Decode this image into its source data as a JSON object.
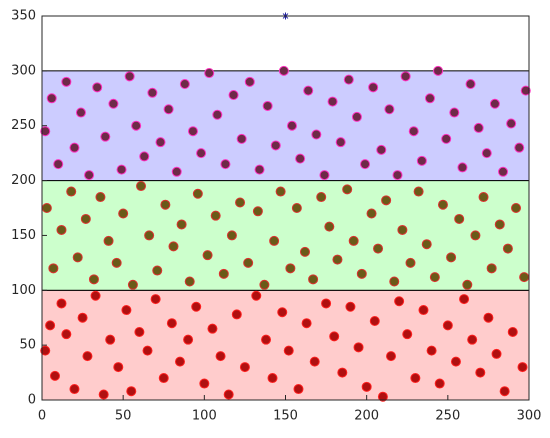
{
  "chart_data": {
    "type": "scatter",
    "xlim": [
      0,
      300
    ],
    "ylim": [
      0,
      350
    ],
    "xticks": [
      0,
      50,
      100,
      150,
      200,
      250,
      300
    ],
    "yticks": [
      0,
      50,
      100,
      150,
      200,
      250,
      300,
      350
    ],
    "grid": false,
    "bands": [
      {
        "range": [
          0,
          100
        ],
        "color": "#ffcccc"
      },
      {
        "range": [
          100,
          200
        ],
        "color": "#ccffcc"
      },
      {
        "range": [
          200,
          300
        ],
        "color": "#ccccff"
      }
    ],
    "series": [
      {
        "color": "#b01010",
        "edgecolor": "#ff2020",
        "marker": "circle",
        "x": [
          2,
          5,
          8,
          12,
          15,
          20,
          25,
          28,
          33,
          38,
          42,
          47,
          52,
          55,
          60,
          65,
          70,
          75,
          80,
          85,
          90,
          95,
          100,
          105,
          110,
          115,
          120,
          125,
          132,
          138,
          142,
          148,
          152,
          158,
          163,
          168,
          175,
          180,
          185,
          190,
          195,
          200,
          205,
          210,
          215,
          220,
          225,
          230,
          235,
          240,
          245,
          250,
          255,
          260,
          265,
          270,
          275,
          280,
          285,
          290,
          296
        ],
        "values": [
          45,
          68,
          22,
          88,
          60,
          10,
          75,
          40,
          95,
          5,
          55,
          30,
          82,
          8,
          62,
          45,
          92,
          20,
          70,
          35,
          55,
          85,
          15,
          65,
          40,
          5,
          78,
          30,
          95,
          55,
          20,
          80,
          45,
          10,
          70,
          35,
          88,
          58,
          25,
          85,
          48,
          12,
          72,
          3,
          40,
          90,
          60,
          20,
          82,
          45,
          15,
          68,
          35,
          92,
          55,
          25,
          75,
          42,
          8,
          62,
          30
        ]
      },
      {
        "color": "#6a5a18",
        "edgecolor": "#e03030",
        "marker": "circle",
        "x": [
          3,
          7,
          12,
          18,
          22,
          27,
          32,
          36,
          41,
          46,
          50,
          56,
          61,
          66,
          71,
          76,
          81,
          86,
          91,
          96,
          102,
          107,
          112,
          117,
          122,
          127,
          133,
          137,
          143,
          147,
          153,
          157,
          162,
          167,
          172,
          177,
          182,
          188,
          192,
          197,
          203,
          207,
          212,
          217,
          222,
          227,
          232,
          237,
          242,
          247,
          252,
          257,
          262,
          267,
          272,
          277,
          282,
          287,
          292,
          297
        ],
        "values": [
          175,
          120,
          155,
          190,
          130,
          165,
          110,
          185,
          145,
          125,
          170,
          105,
          195,
          150,
          118,
          178,
          140,
          160,
          108,
          188,
          132,
          168,
          115,
          150,
          180,
          125,
          172,
          105,
          145,
          190,
          120,
          175,
          135,
          110,
          185,
          158,
          128,
          192,
          145,
          115,
          170,
          138,
          182,
          108,
          155,
          125,
          190,
          142,
          112,
          178,
          130,
          165,
          105,
          150,
          185,
          120,
          160,
          138,
          175,
          112
        ]
      },
      {
        "color": "#6e2a48",
        "edgecolor": "#ff30c0",
        "marker": "circle",
        "x": [
          2,
          6,
          10,
          15,
          20,
          24,
          29,
          34,
          39,
          44,
          49,
          54,
          58,
          63,
          68,
          73,
          78,
          83,
          88,
          93,
          98,
          103,
          108,
          113,
          118,
          123,
          128,
          134,
          139,
          144,
          149,
          154,
          159,
          164,
          169,
          174,
          179,
          184,
          189,
          194,
          199,
          204,
          209,
          214,
          219,
          224,
          229,
          234,
          239,
          244,
          249,
          254,
          259,
          264,
          269,
          274,
          279,
          284,
          289,
          294,
          298
        ],
        "values": [
          245,
          275,
          215,
          290,
          230,
          262,
          205,
          285,
          240,
          270,
          210,
          295,
          250,
          222,
          280,
          235,
          265,
          208,
          288,
          245,
          225,
          298,
          260,
          215,
          278,
          238,
          290,
          210,
          268,
          232,
          300,
          250,
          220,
          282,
          242,
          205,
          272,
          235,
          292,
          258,
          215,
          285,
          228,
          265,
          205,
          295,
          245,
          218,
          275,
          300,
          238,
          262,
          212,
          288,
          248,
          225,
          270,
          208,
          252,
          230,
          282
        ]
      },
      {
        "color": "#2020a0",
        "edgecolor": "#2020a0",
        "marker": "star",
        "x": [
          150
        ],
        "values": [
          350
        ]
      }
    ]
  }
}
